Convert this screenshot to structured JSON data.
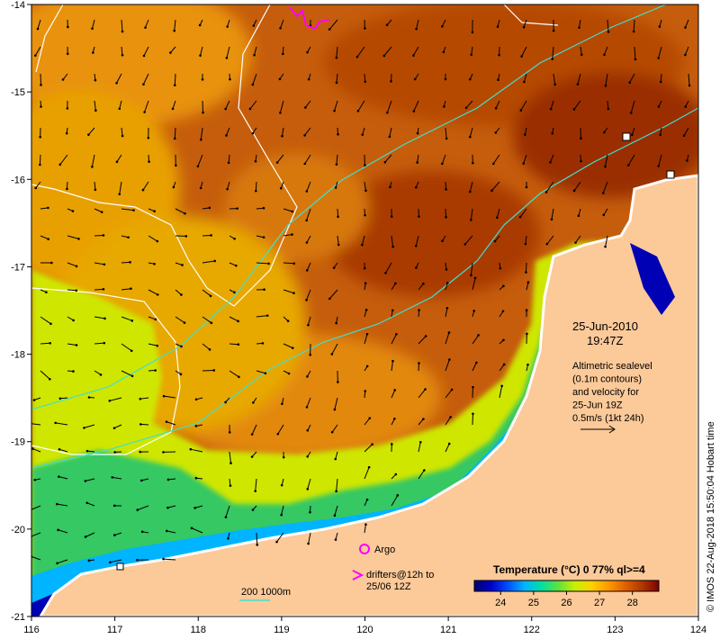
{
  "map": {
    "lon_range": [
      116,
      124
    ],
    "lat_range": [
      -21,
      -14
    ],
    "x_ticks": [
      "116",
      "117",
      "118",
      "119",
      "120",
      "121",
      "122",
      "123",
      "124"
    ],
    "y_ticks": [
      "-14",
      "-15",
      "-16",
      "-17",
      "-18",
      "-19",
      "-20",
      "-21"
    ]
  },
  "labels": {
    "date": "25-Jun-2010",
    "time": "19:47Z",
    "alt_lines": [
      "Altimetric sealevel",
      "(0.1m contours)",
      "and velocity for",
      "25-Jun 19Z",
      "0.5m/s (1kt 24h)"
    ],
    "argo": "Argo",
    "drifters_lines": [
      "drifters@12h to",
      "25/06 12Z"
    ],
    "depth_scale": "200  1000m",
    "copyright": "© IMOS 22-Aug-2018 15:50:04 Hobart time"
  },
  "colorbar": {
    "title": "Temperature (°C) 0 77% ql>=4",
    "min": 23.2,
    "max": 28.8,
    "ticks": [
      "24",
      "25",
      "26",
      "27",
      "28"
    ],
    "colors": [
      "#00006e",
      "#0000c8",
      "#0050ff",
      "#00b4ff",
      "#00e0a0",
      "#60e040",
      "#c8f000",
      "#ffd000",
      "#ff9a00",
      "#e06000",
      "#b03800",
      "#800000"
    ]
  },
  "colors": {
    "land": "#fcc999",
    "argo": "#ff00ff",
    "drifter": "#ff00ff",
    "isobath": "#40e0d0",
    "sealevel_contour": "#ffffff",
    "vector": "#000000"
  }
}
